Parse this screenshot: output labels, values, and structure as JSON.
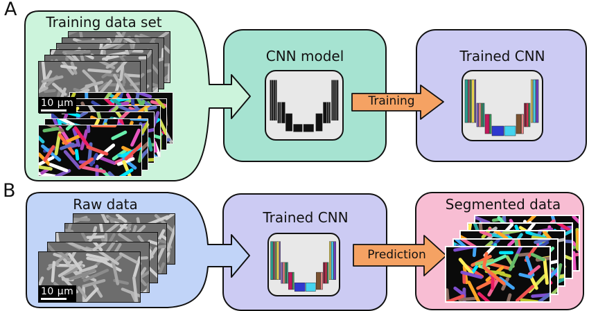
{
  "panel_a": {
    "label": "A",
    "training_data_box": {
      "title": "Training data set",
      "scale_bar_label": "10 μm"
    },
    "cnn_model_box": {
      "title": "CNN model"
    },
    "training_arrow_label": "Training",
    "trained_cnn_box": {
      "title": "Trained CNN"
    }
  },
  "panel_b": {
    "label": "B",
    "raw_data_box": {
      "title": "Raw data",
      "scale_bar_label": "10 μm"
    },
    "trained_cnn_box": {
      "title": "Trained CNN"
    },
    "prediction_arrow_label": "Prediction",
    "segmented_data_box": {
      "title": "Segmented data"
    }
  },
  "colors": {
    "training_box": "#ccf4dc",
    "cnn_model_box": "#a6e3d1",
    "trained_cnn_box": "#cccbf3",
    "raw_data_box": "#c1d4f8",
    "segmented_box": "#f8bdd3",
    "process_arrow": "#f5a263",
    "inner_panel": "#e8e8e8",
    "outline": "#111111",
    "micrograph_bg": "#6d6d6d",
    "mask_bg": "#0a0a0a"
  },
  "unet": {
    "black_bars": [
      [
        7,
        13,
        1.7,
        60,
        "#111"
      ],
      [
        9.7,
        13,
        1.7,
        60,
        "#111"
      ],
      [
        12.4,
        13,
        1.7,
        60,
        "#111"
      ],
      [
        15.1,
        13,
        1.7,
        60,
        "#111"
      ],
      [
        18.5,
        46,
        1.7,
        31,
        "#111"
      ],
      [
        21.2,
        46,
        1.7,
        31,
        "#111"
      ],
      [
        24.3,
        46,
        5,
        31,
        "#111"
      ],
      [
        30.5,
        63,
        9.5,
        26,
        "#111"
      ],
      [
        42,
        79,
        13,
        11,
        "#111"
      ],
      [
        57,
        79,
        15,
        11,
        "#111"
      ],
      [
        75.5,
        63,
        9.5,
        26,
        "#111"
      ],
      [
        86.5,
        46,
        5,
        31,
        "#111"
      ],
      [
        92.5,
        46,
        1.7,
        31,
        "#111"
      ],
      [
        95.2,
        46,
        1.7,
        31,
        "#111"
      ],
      [
        99,
        13,
        1.7,
        60,
        "#111"
      ],
      [
        101.7,
        13,
        1.7,
        60,
        "#111"
      ],
      [
        104.4,
        13,
        1.7,
        60,
        "#111"
      ],
      [
        107.1,
        13,
        1.7,
        60,
        "#111"
      ]
    ],
    "colored_bars": [
      [
        4,
        13,
        4,
        62,
        "#2a9d8f"
      ],
      [
        8.8,
        13,
        1.6,
        62,
        "#b03050"
      ],
      [
        11.3,
        13,
        1.6,
        62,
        "#5aa046"
      ],
      [
        13.8,
        13,
        3.5,
        62,
        "#e9d44f"
      ],
      [
        18.2,
        13,
        1.6,
        62,
        "#8060c0"
      ],
      [
        21,
        47,
        2.5,
        34,
        "#7f5fc0"
      ],
      [
        24,
        47,
        3,
        34,
        "#ef8a8a"
      ],
      [
        27.5,
        47,
        2,
        34,
        "#3a9d5f"
      ],
      [
        30,
        47,
        2,
        34,
        "#2a9d8f"
      ],
      [
        33,
        63,
        6,
        28,
        "#c2185b"
      ],
      [
        39.5,
        63,
        2.5,
        28,
        "#3a9d5f"
      ],
      [
        43,
        80,
        17,
        14,
        "#2f39cf"
      ],
      [
        61,
        80,
        16,
        14,
        "#45d4ef"
      ],
      [
        78,
        63,
        7,
        28,
        "#7a5230"
      ],
      [
        85.5,
        63,
        3,
        28,
        "#ef8a8a"
      ],
      [
        89.5,
        47,
        2.5,
        34,
        "#8b1a3a"
      ],
      [
        92.5,
        47,
        3,
        34,
        "#d43050"
      ],
      [
        96,
        47,
        2,
        34,
        "#3a9d5f"
      ],
      [
        99.5,
        13,
        2,
        62,
        "#e9d44f"
      ],
      [
        102.5,
        13,
        3.5,
        62,
        "#45c8e0"
      ],
      [
        106.5,
        13,
        3.5,
        62,
        "#7040c0"
      ]
    ]
  },
  "micrograph_rod_palette": [
    "#989898",
    "#a6a6a6",
    "#b4b4b4",
    "#c2c2c2",
    "#8c8c8c",
    "#cfcfcf"
  ],
  "mask_rod_palette": [
    "#e857c1",
    "#f06292",
    "#ef5350",
    "#ab47bc",
    "#7e57c2",
    "#5c6bc0",
    "#3949ab",
    "#42a5f5",
    "#26c6da",
    "#00e5ff",
    "#26a69a",
    "#66bb6a",
    "#9ccc65",
    "#d4e157",
    "#ffee58",
    "#ffa726",
    "#ff7043",
    "#8d6e63",
    "#bdbdbd",
    "#ffffff",
    "#69f0ae",
    "#e91e63",
    "#c0ca33",
    "#804fd0"
  ]
}
